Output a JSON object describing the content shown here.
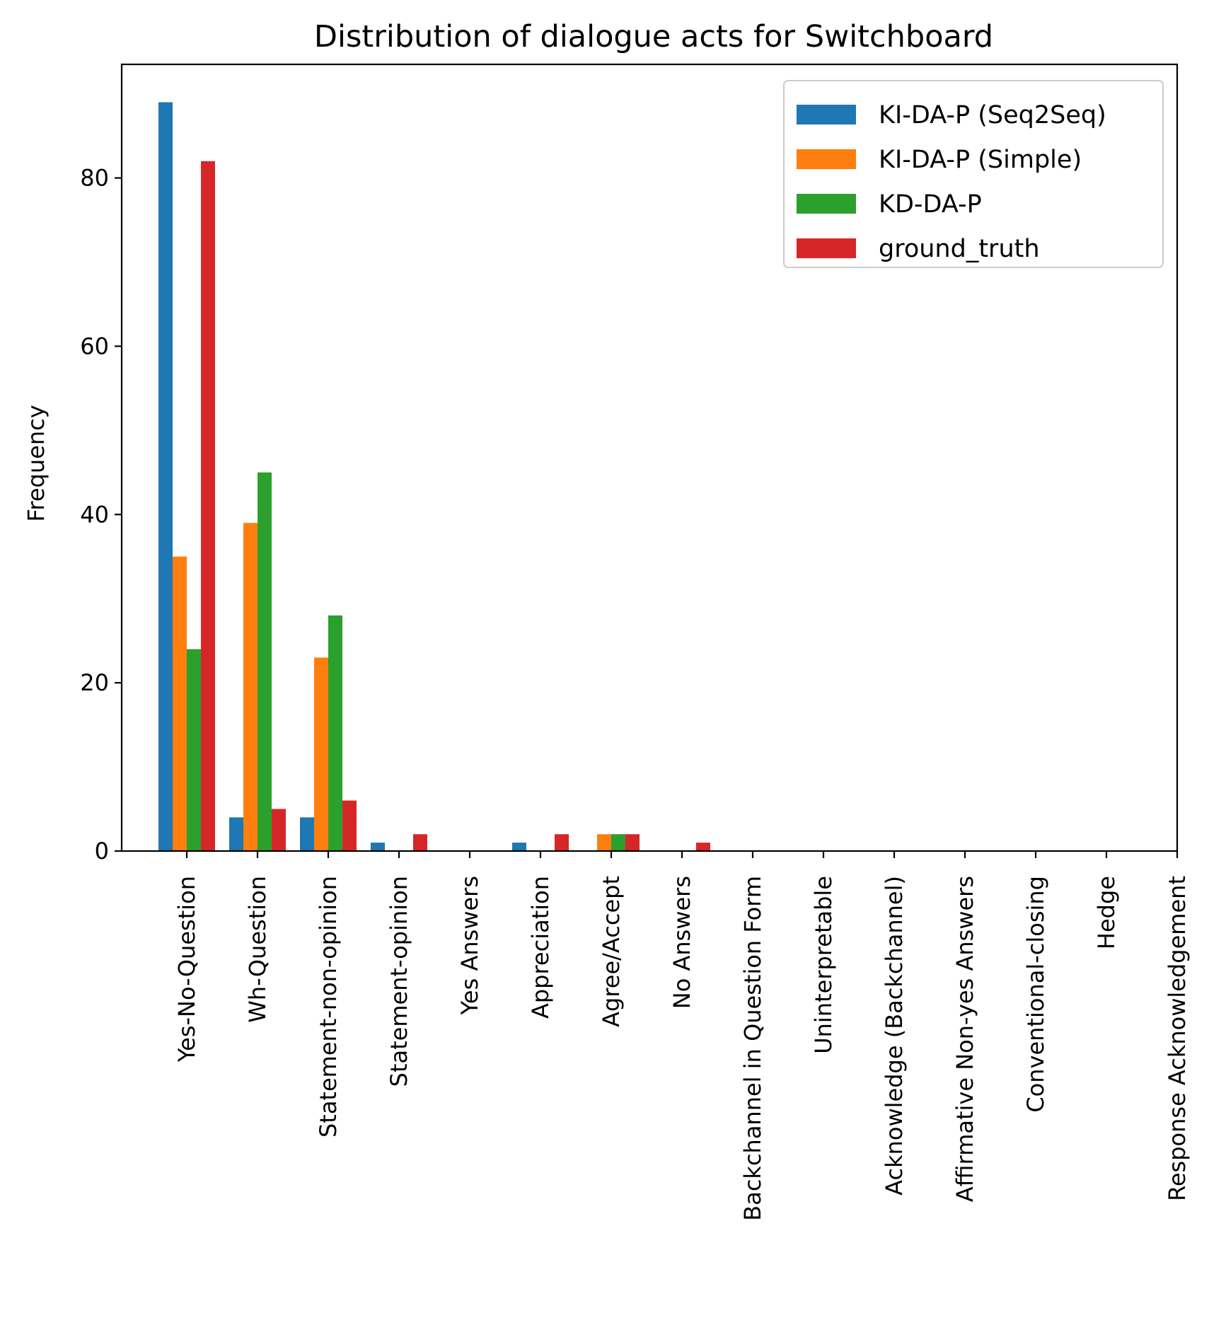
{
  "chart_data": {
    "type": "bar",
    "title": "Distribution of dialogue acts for Switchboard",
    "xlabel": "",
    "ylabel": "Frequency",
    "ylim": [
      0,
      93.5
    ],
    "yticks": [
      0,
      20,
      40,
      60,
      80
    ],
    "grid": false,
    "legend_position": "top-right",
    "categories": [
      "Yes-No-Question",
      "Wh-Question",
      "Statement-non-opinion",
      "Statement-opinion",
      "Yes Answers",
      "Appreciation",
      "Agree/Accept",
      "No Answers",
      "Backchannel in Question Form",
      "Uninterpretable",
      "Acknowledge (Backchannel)",
      "Affirmative Non-yes Answers",
      "Conventional-closing",
      "Hedge",
      "Response Acknowledgement"
    ],
    "series": [
      {
        "name": "KI-DA-P (Seq2Seq)",
        "color": "#1f77b4",
        "values": [
          89,
          4,
          4,
          1,
          0,
          1,
          0,
          0,
          0,
          0,
          0,
          0,
          0,
          0,
          0
        ]
      },
      {
        "name": "KI-DA-P (Simple)",
        "color": "#ff7f0e",
        "values": [
          35,
          39,
          23,
          0,
          0,
          0,
          2,
          0,
          0,
          0,
          0,
          0,
          0,
          0,
          0
        ]
      },
      {
        "name": "KD-DA-P",
        "color": "#2ca02c",
        "values": [
          24,
          45,
          28,
          0,
          0,
          0,
          2,
          0,
          0,
          0,
          0,
          0,
          0,
          0,
          0
        ]
      },
      {
        "name": "ground_truth",
        "color": "#d62728",
        "values": [
          82,
          5,
          6,
          2,
          0,
          2,
          2,
          1,
          0,
          0,
          0,
          0,
          0,
          0,
          0
        ]
      }
    ]
  }
}
